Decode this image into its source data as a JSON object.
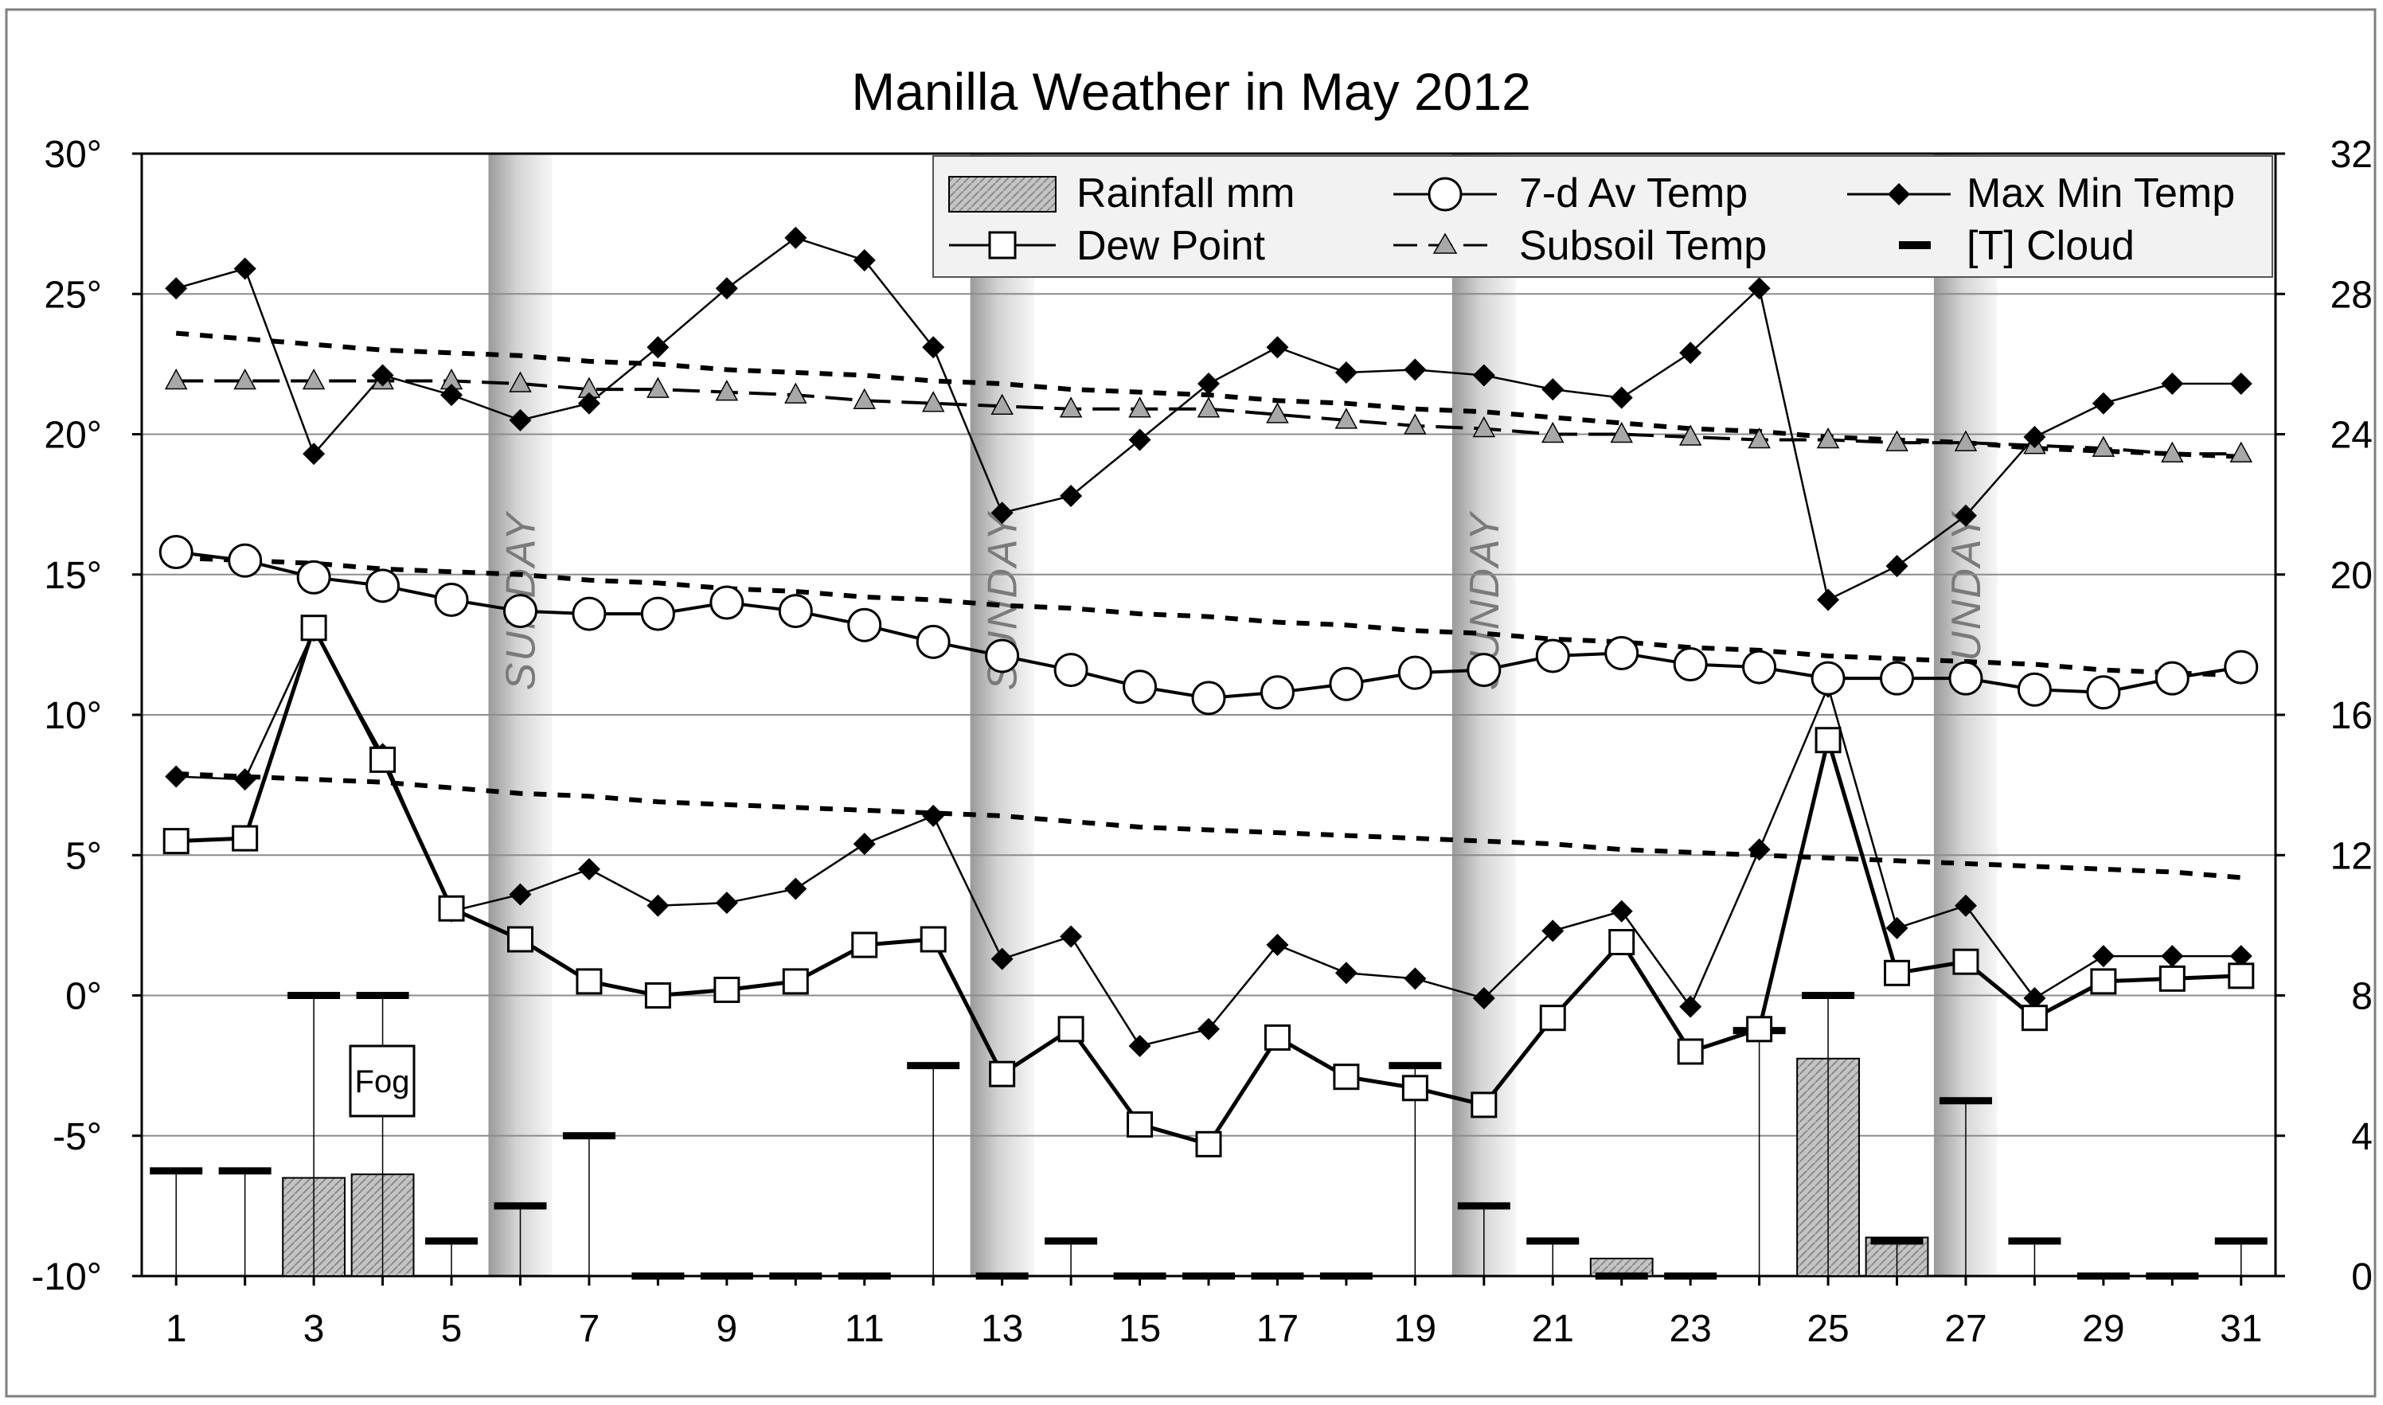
{
  "chart_data": {
    "type": "line",
    "title": "Manilla Weather in May 2012",
    "x": [
      1,
      2,
      3,
      4,
      5,
      6,
      7,
      8,
      9,
      10,
      11,
      12,
      13,
      14,
      15,
      16,
      17,
      18,
      19,
      20,
      21,
      22,
      23,
      24,
      25,
      26,
      27,
      28,
      29,
      30,
      31
    ],
    "x_tick_labels": [
      "1",
      "3",
      "5",
      "7",
      "9",
      "11",
      "13",
      "15",
      "17",
      "19",
      "21",
      "23",
      "25",
      "27",
      "29",
      "31"
    ],
    "xlim": [
      0.5,
      31.5
    ],
    "left_axis": {
      "ylim": [
        -10,
        30
      ],
      "tick_labels": [
        "-10°",
        "-5°",
        "0°",
        "5°",
        "10°",
        "15°",
        "20°",
        "25°",
        "30°"
      ]
    },
    "right_axis": {
      "ylim": [
        0,
        32
      ],
      "tick_labels": [
        "0",
        "4",
        "8",
        "12",
        "16",
        "20",
        "24",
        "28",
        "32"
      ]
    },
    "grid": "horizontal",
    "legend_position": "top-right",
    "legend": {
      "rainfall": "Rainfall mm",
      "avg7": "7-d Av Temp",
      "maxmin": "Max Min Temp",
      "dew": "Dew Point",
      "subsoil": "Subsoil Temp",
      "cloud": "[T] Cloud"
    },
    "sunday_label": "SUNDAY",
    "sundays": [
      6,
      13,
      20,
      27
    ],
    "fog_label": "Fog",
    "fog_day": 4,
    "series": [
      {
        "key": "max_temp",
        "legend_key": "maxmin",
        "axis": "left",
        "values": [
          25.2,
          25.9,
          19.3,
          22.1,
          21.4,
          20.5,
          21.1,
          23.1,
          25.2,
          27.0,
          26.2,
          23.1,
          17.2,
          17.8,
          19.8,
          21.8,
          23.1,
          22.2,
          22.3,
          22.1,
          21.6,
          21.3,
          22.9,
          25.2,
          14.1,
          15.3,
          17.1,
          19.9,
          21.1,
          21.8,
          21.8
        ]
      },
      {
        "key": "min_temp",
        "legend_key": "maxmin",
        "axis": "left",
        "values": [
          7.8,
          7.7,
          13.0,
          8.6,
          3.0,
          3.6,
          4.5,
          3.2,
          3.3,
          3.8,
          5.4,
          6.4,
          1.3,
          2.1,
          -1.8,
          -1.2,
          1.8,
          0.8,
          0.6,
          -0.1,
          2.3,
          3.0,
          -0.4,
          5.2,
          11.0,
          2.4,
          3.2,
          -0.1,
          1.4,
          1.4,
          1.4
        ]
      },
      {
        "key": "dew_point",
        "legend_key": "dew",
        "axis": "left",
        "values": [
          5.5,
          5.6,
          13.1,
          8.4,
          3.1,
          2.0,
          0.5,
          0.0,
          0.2,
          0.5,
          1.8,
          2.0,
          -2.8,
          -1.2,
          -4.6,
          -5.3,
          -1.5,
          -2.9,
          -3.3,
          -3.9,
          -0.8,
          1.9,
          -2.0,
          -1.2,
          9.1,
          0.8,
          1.2,
          -0.8,
          0.5,
          0.6,
          0.7
        ]
      },
      {
        "key": "avg7_temp",
        "legend_key": "avg7",
        "axis": "left",
        "values": [
          15.8,
          15.5,
          14.9,
          14.6,
          14.1,
          13.7,
          13.6,
          13.6,
          14.0,
          13.7,
          13.2,
          12.6,
          12.1,
          11.6,
          11.0,
          10.6,
          10.8,
          11.1,
          11.5,
          11.6,
          12.1,
          12.2,
          11.8,
          11.7,
          11.3,
          11.3,
          11.3,
          10.9,
          10.8,
          11.3,
          11.7
        ]
      },
      {
        "key": "subsoil_temp",
        "legend_key": "subsoil",
        "axis": "left",
        "values": [
          21.9,
          21.9,
          21.9,
          21.9,
          21.9,
          21.8,
          21.6,
          21.6,
          21.5,
          21.4,
          21.2,
          21.1,
          21.0,
          20.9,
          20.9,
          20.9,
          20.7,
          20.5,
          20.3,
          20.2,
          20.0,
          20.0,
          19.9,
          19.8,
          19.8,
          19.7,
          19.7,
          19.6,
          19.5,
          19.3,
          19.3
        ]
      },
      {
        "key": "max_norm",
        "axis": "left",
        "values": [
          23.6,
          23.4,
          23.2,
          23.0,
          22.9,
          22.8,
          22.6,
          22.5,
          22.3,
          22.2,
          22.1,
          21.9,
          21.8,
          21.6,
          21.5,
          21.4,
          21.2,
          21.1,
          20.9,
          20.8,
          20.6,
          20.4,
          20.2,
          20.1,
          19.9,
          19.8,
          19.7,
          19.5,
          19.4,
          19.3,
          19.2
        ]
      },
      {
        "key": "avg_norm",
        "axis": "left",
        "values": [
          15.6,
          15.5,
          15.4,
          15.2,
          15.1,
          15.0,
          14.8,
          14.7,
          14.5,
          14.4,
          14.2,
          14.1,
          13.9,
          13.8,
          13.6,
          13.5,
          13.3,
          13.2,
          13.0,
          12.9,
          12.7,
          12.6,
          12.4,
          12.3,
          12.1,
          12.0,
          11.9,
          11.8,
          11.6,
          11.5,
          11.4
        ]
      },
      {
        "key": "min_norm",
        "axis": "left",
        "values": [
          7.9,
          7.8,
          7.7,
          7.6,
          7.4,
          7.2,
          7.1,
          6.9,
          6.8,
          6.7,
          6.6,
          6.5,
          6.4,
          6.2,
          6.0,
          5.9,
          5.8,
          5.7,
          5.6,
          5.5,
          5.4,
          5.2,
          5.1,
          5.0,
          4.9,
          4.8,
          4.7,
          4.6,
          4.5,
          4.4,
          4.2
        ]
      },
      {
        "key": "rainfall_mm",
        "legend_key": "rainfall",
        "axis": "right",
        "values": [
          0,
          0,
          2.8,
          2.9,
          0,
          0,
          0,
          0,
          0,
          0,
          0,
          0,
          0,
          0,
          0,
          0,
          0,
          0,
          0,
          0,
          0,
          0.5,
          0,
          0,
          6.2,
          1.1,
          0,
          0,
          0,
          0,
          0
        ]
      },
      {
        "key": "cloud",
        "legend_key": "cloud",
        "axis": "right",
        "values": [
          3,
          3,
          8,
          8,
          1,
          2,
          4,
          0,
          0,
          0,
          0,
          6,
          0,
          1,
          0,
          0,
          0,
          0,
          6,
          2,
          1,
          0,
          0,
          7,
          8,
          1,
          5,
          1,
          0,
          0,
          1
        ]
      }
    ]
  }
}
